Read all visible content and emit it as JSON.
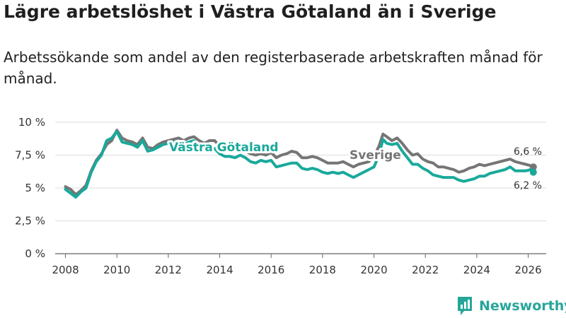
{
  "title": "Lägre arbetslöshet i Västra Götaland än i Sverige",
  "subtitle": "Arbetssökande som andel av den registerbaserade arbetskraften månad för månad.",
  "colors": {
    "sverige": "#757575",
    "vastra_gotaland": "#19a99b",
    "grid": "#dddddd",
    "logo": "#26a69a"
  },
  "logo": {
    "text": "Newsworthy",
    "icon": "chart-bubble-icon"
  },
  "chart_data": {
    "type": "line",
    "title": "Lägre arbetslöshet i Västra Götaland än i Sverige",
    "xlabel": "",
    "ylabel": "",
    "xlim": [
      2007.6,
      2026.7
    ],
    "ylim": [
      0,
      10
    ],
    "y_ticks": [
      0,
      2.5,
      5,
      7.5,
      10
    ],
    "y_tick_labels": [
      "0 %",
      "2,5 %",
      "5 %",
      "7,5 %",
      "10 %"
    ],
    "x_ticks": [
      2008,
      2010,
      2012,
      2014,
      2016,
      2018,
      2020,
      2022,
      2024,
      2026
    ],
    "x_tick_labels": [
      "2008",
      "2010",
      "2012",
      "2014",
      "2016",
      "2018",
      "2020",
      "2022",
      "2024",
      "2026"
    ],
    "grid": true,
    "series": [
      {
        "name": "Sverige",
        "label": "Sverige",
        "end_label": "6,6 %",
        "x": [
          2008.0,
          2008.2,
          2008.4,
          2008.6,
          2008.8,
          2009.0,
          2009.2,
          2009.4,
          2009.6,
          2009.8,
          2010.0,
          2010.2,
          2010.4,
          2010.6,
          2010.8,
          2011.0,
          2011.2,
          2011.4,
          2011.6,
          2011.8,
          2012.0,
          2012.2,
          2012.4,
          2012.6,
          2012.8,
          2013.0,
          2013.2,
          2013.4,
          2013.6,
          2013.8,
          2014.0,
          2014.2,
          2014.4,
          2014.6,
          2014.8,
          2015.0,
          2015.2,
          2015.4,
          2015.6,
          2015.8,
          2016.0,
          2016.2,
          2016.4,
          2016.6,
          2016.8,
          2017.0,
          2017.2,
          2017.4,
          2017.6,
          2017.8,
          2018.0,
          2018.2,
          2018.4,
          2018.6,
          2018.8,
          2019.0,
          2019.2,
          2019.4,
          2019.6,
          2019.8,
          2020.0,
          2020.2,
          2020.35,
          2020.5,
          2020.7,
          2020.9,
          2021.1,
          2021.3,
          2021.5,
          2021.7,
          2021.9,
          2022.1,
          2022.3,
          2022.5,
          2022.7,
          2022.9,
          2023.1,
          2023.3,
          2023.5,
          2023.7,
          2023.9,
          2024.1,
          2024.3,
          2024.5,
          2024.7,
          2024.9,
          2025.1,
          2025.3,
          2025.5,
          2025.7,
          2025.9,
          2026.1,
          2026.2
        ],
        "values": [
          5.1,
          4.9,
          4.5,
          4.8,
          5.2,
          6.3,
          7.1,
          7.6,
          8.3,
          8.6,
          9.4,
          8.8,
          8.6,
          8.5,
          8.3,
          8.8,
          8.1,
          8.0,
          8.3,
          8.5,
          8.6,
          8.7,
          8.8,
          8.6,
          8.8,
          8.9,
          8.6,
          8.4,
          8.6,
          8.6,
          8.2,
          8.1,
          7.9,
          7.9,
          7.9,
          7.8,
          7.6,
          7.5,
          7.6,
          7.5,
          7.7,
          7.3,
          7.5,
          7.6,
          7.8,
          7.7,
          7.3,
          7.3,
          7.4,
          7.3,
          7.1,
          6.9,
          6.9,
          6.9,
          7.0,
          6.8,
          6.6,
          6.8,
          6.9,
          7.0,
          7.4,
          8.2,
          9.1,
          8.9,
          8.6,
          8.8,
          8.4,
          7.9,
          7.5,
          7.6,
          7.2,
          7.0,
          6.9,
          6.6,
          6.6,
          6.5,
          6.4,
          6.2,
          6.3,
          6.5,
          6.6,
          6.8,
          6.7,
          6.8,
          6.9,
          7.0,
          7.1,
          7.2,
          7.0,
          6.9,
          6.8,
          6.7,
          6.6
        ]
      },
      {
        "name": "Västra Götaland",
        "label": "Västra Götaland",
        "end_label": "6,2 %",
        "x": [
          2008.0,
          2008.2,
          2008.4,
          2008.6,
          2008.8,
          2009.0,
          2009.2,
          2009.4,
          2009.6,
          2009.8,
          2010.0,
          2010.2,
          2010.4,
          2010.6,
          2010.8,
          2011.0,
          2011.2,
          2011.4,
          2011.6,
          2011.8,
          2012.0,
          2012.2,
          2012.4,
          2012.6,
          2012.8,
          2013.0,
          2013.2,
          2013.4,
          2013.6,
          2013.8,
          2014.0,
          2014.2,
          2014.4,
          2014.6,
          2014.8,
          2015.0,
          2015.2,
          2015.4,
          2015.6,
          2015.8,
          2016.0,
          2016.2,
          2016.4,
          2016.6,
          2016.8,
          2017.0,
          2017.2,
          2017.4,
          2017.6,
          2017.8,
          2018.0,
          2018.2,
          2018.4,
          2018.6,
          2018.8,
          2019.0,
          2019.2,
          2019.4,
          2019.6,
          2019.8,
          2020.0,
          2020.2,
          2020.35,
          2020.5,
          2020.7,
          2020.9,
          2021.1,
          2021.3,
          2021.5,
          2021.7,
          2021.9,
          2022.1,
          2022.3,
          2022.5,
          2022.7,
          2022.9,
          2023.1,
          2023.3,
          2023.5,
          2023.7,
          2023.9,
          2024.1,
          2024.3,
          2024.5,
          2024.7,
          2024.9,
          2025.1,
          2025.3,
          2025.5,
          2025.7,
          2025.9,
          2026.1,
          2026.2
        ],
        "values": [
          4.9,
          4.6,
          4.3,
          4.7,
          5.0,
          6.2,
          7.0,
          7.5,
          8.6,
          8.8,
          9.3,
          8.5,
          8.4,
          8.3,
          8.1,
          8.6,
          7.8,
          7.9,
          8.1,
          8.3,
          8.4,
          8.5,
          8.5,
          8.3,
          8.5,
          8.6,
          8.2,
          8.0,
          8.1,
          8.0,
          7.6,
          7.4,
          7.4,
          7.3,
          7.5,
          7.3,
          7.0,
          6.9,
          7.1,
          7.0,
          7.1,
          6.6,
          6.7,
          6.8,
          6.9,
          6.9,
          6.5,
          6.4,
          6.5,
          6.4,
          6.2,
          6.1,
          6.2,
          6.1,
          6.2,
          6.0,
          5.8,
          6.0,
          6.2,
          6.4,
          6.6,
          7.5,
          8.7,
          8.4,
          8.3,
          8.4,
          7.8,
          7.3,
          6.8,
          6.8,
          6.5,
          6.3,
          6.0,
          5.9,
          5.8,
          5.8,
          5.8,
          5.6,
          5.5,
          5.6,
          5.7,
          5.9,
          5.9,
          6.1,
          6.2,
          6.3,
          6.4,
          6.6,
          6.3,
          6.3,
          6.3,
          6.4,
          6.2
        ]
      }
    ]
  }
}
